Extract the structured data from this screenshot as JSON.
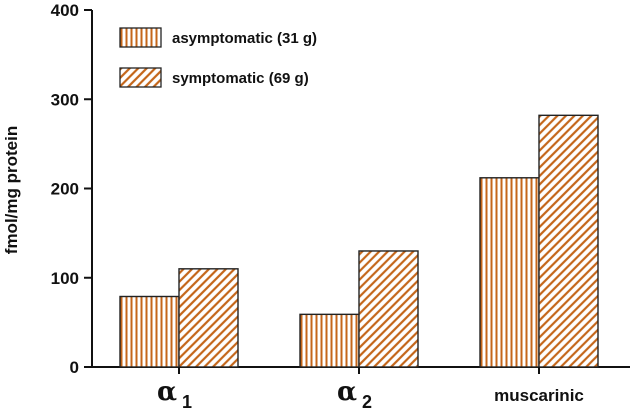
{
  "chart_data": {
    "type": "bar",
    "title": "",
    "xlabel": "",
    "ylabel": "fmol/mg protein",
    "ylim": [
      0,
      400
    ],
    "yticks": [
      "0",
      "100",
      "200",
      "300",
      "400"
    ],
    "categories": [
      {
        "symbol": "α",
        "sub": "1",
        "text": ""
      },
      {
        "symbol": "α",
        "sub": "2",
        "text": ""
      },
      {
        "symbol": "",
        "sub": "",
        "text": "muscarinic"
      }
    ],
    "series": [
      {
        "name": "asymptomatic (31 g)",
        "pattern": "vertical",
        "color": "#c4661a",
        "values": [
          79,
          59,
          212
        ]
      },
      {
        "name": "symptomatic (69 g)",
        "pattern": "diagonal",
        "color": "#c4661a",
        "values": [
          110,
          130,
          282
        ]
      }
    ],
    "legend": "top-left",
    "grid": false
  }
}
